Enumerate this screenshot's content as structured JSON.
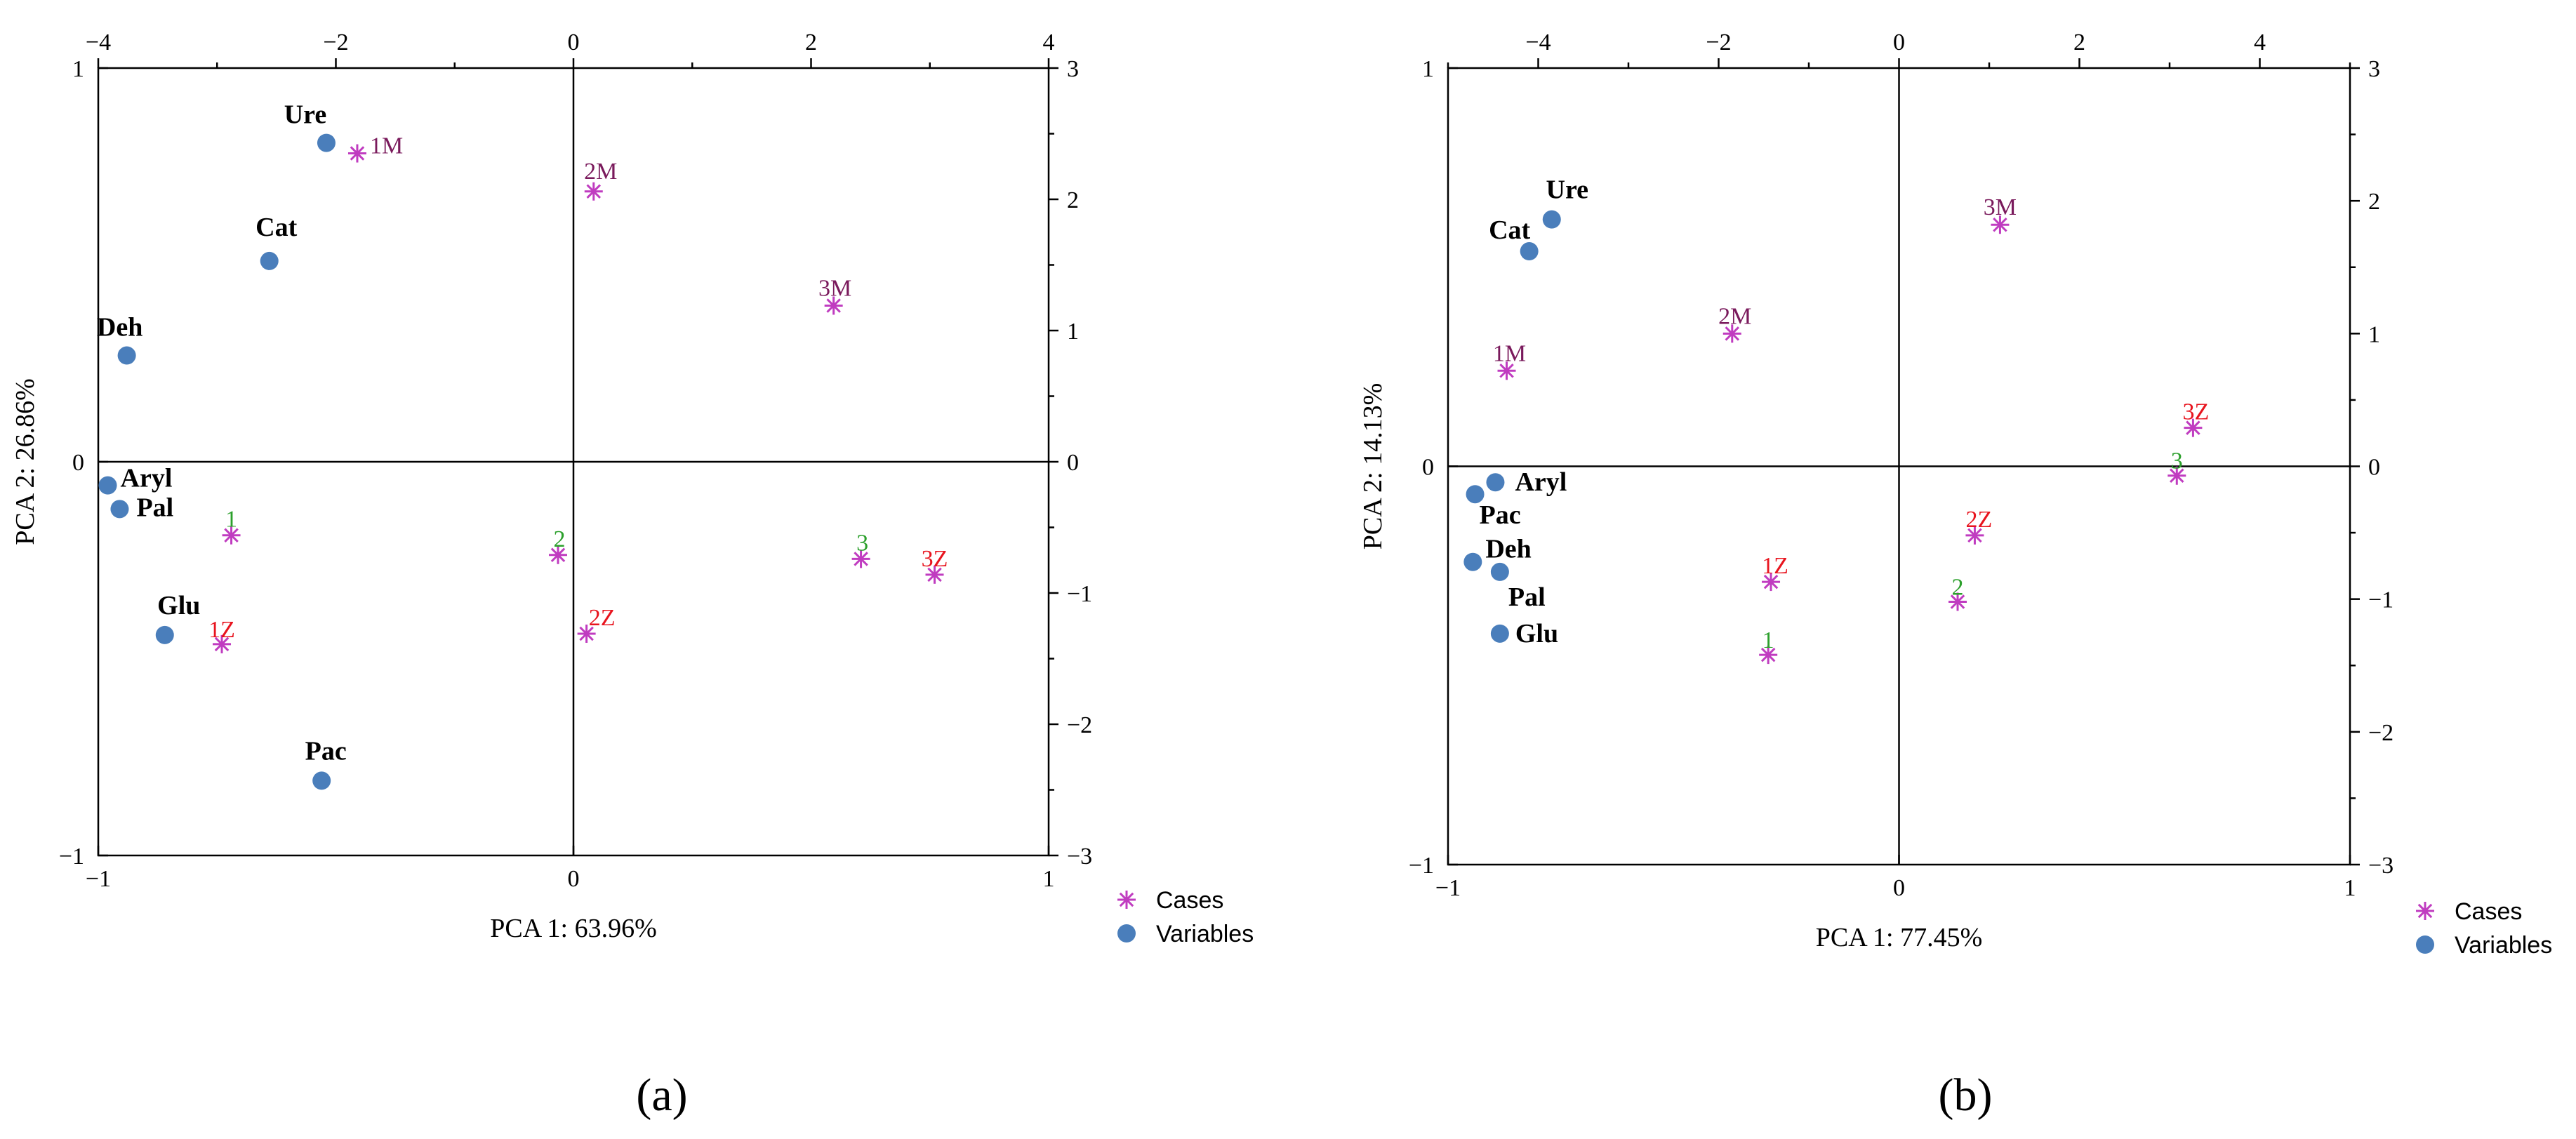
{
  "colors": {
    "variable_marker": "#4a7ebb",
    "case_marker": "#c03cc0",
    "maroon": "#7a1a5c",
    "green": "#2ca02c",
    "red": "#e8141e"
  },
  "chart_data": [
    {
      "type": "scatter",
      "panel_label": "(a)",
      "xlabel": "PCA 1: 63.96%",
      "ylabel": "PCA 2: 26.86%",
      "xlim": [
        -1,
        1
      ],
      "ylim": [
        -1,
        1
      ],
      "x2lim": [
        -4,
        4
      ],
      "y2lim": [
        -3,
        3
      ],
      "x_ticks": [
        -1,
        0,
        1
      ],
      "y_ticks": [
        -1,
        0,
        1
      ],
      "x2_ticks": [
        -4,
        -2,
        0,
        2,
        4
      ],
      "y2_ticks": [
        -3,
        -2,
        -1,
        0,
        1,
        2,
        3
      ],
      "legend": [
        "Cases",
        "Variables"
      ],
      "variables": [
        {
          "name": "Ure",
          "x": -0.52,
          "y": 0.81
        },
        {
          "name": "Cat",
          "x": -0.64,
          "y": 0.51
        },
        {
          "name": "Deh",
          "x": -0.94,
          "y": 0.27
        },
        {
          "name": "Aryl",
          "x": -0.98,
          "y": -0.06
        },
        {
          "name": "Pal",
          "x": -0.955,
          "y": -0.12
        },
        {
          "name": "Glu",
          "x": -0.86,
          "y": -0.44
        },
        {
          "name": "Pac",
          "x": -0.53,
          "y": -0.81
        }
      ],
      "cases": [
        {
          "name": "1M",
          "x": -1.82,
          "y": 2.35,
          "color": "maroon"
        },
        {
          "name": "2M",
          "x": 0.17,
          "y": 2.06,
          "color": "maroon"
        },
        {
          "name": "3M",
          "x": 2.19,
          "y": 1.19,
          "color": "maroon"
        },
        {
          "name": "1",
          "x": -2.88,
          "y": -0.56,
          "color": "green"
        },
        {
          "name": "2",
          "x": -0.13,
          "y": -0.71,
          "color": "green"
        },
        {
          "name": "3",
          "x": 2.42,
          "y": -0.74,
          "color": "green"
        },
        {
          "name": "1Z",
          "x": -2.96,
          "y": -1.39,
          "color": "red"
        },
        {
          "name": "2Z",
          "x": 0.11,
          "y": -1.31,
          "color": "red"
        },
        {
          "name": "3Z",
          "x": 3.04,
          "y": -0.86,
          "color": "red"
        }
      ]
    },
    {
      "type": "scatter",
      "panel_label": "(b)",
      "xlabel": "PCA 1: 77.45%",
      "ylabel": "PCA 2: 14.13%",
      "xlim": [
        -1,
        1
      ],
      "ylim": [
        -1,
        1
      ],
      "x2lim": [
        -5,
        5
      ],
      "y2lim": [
        -3,
        3
      ],
      "x_ticks": [
        -1,
        0,
        1
      ],
      "y_ticks": [
        -1,
        0,
        1
      ],
      "x2_ticks": [
        -4,
        -2,
        0,
        2,
        4
      ],
      "y2_ticks": [
        -3,
        -2,
        -1,
        0,
        1,
        2,
        3
      ],
      "legend": [
        "Cases",
        "Variables"
      ],
      "variables": [
        {
          "name": "Ure",
          "x": -0.77,
          "y": 0.62
        },
        {
          "name": "Cat",
          "x": -0.82,
          "y": 0.54
        },
        {
          "name": "Aryl",
          "x": -0.895,
          "y": -0.04
        },
        {
          "name": "Pac",
          "x": -0.94,
          "y": -0.07
        },
        {
          "name": "Deh",
          "x": -0.945,
          "y": -0.24
        },
        {
          "name": "Pal",
          "x": -0.885,
          "y": -0.265
        },
        {
          "name": "Glu",
          "x": -0.885,
          "y": -0.42
        }
      ],
      "cases": [
        {
          "name": "1M",
          "x": -4.35,
          "y": 0.72,
          "color": "maroon"
        },
        {
          "name": "2M",
          "x": -1.85,
          "y": 1.0,
          "color": "maroon"
        },
        {
          "name": "3M",
          "x": 1.12,
          "y": 1.82,
          "color": "maroon"
        },
        {
          "name": "1",
          "x": -1.45,
          "y": -1.42,
          "color": "green"
        },
        {
          "name": "2",
          "x": 0.65,
          "y": -1.02,
          "color": "green"
        },
        {
          "name": "3",
          "x": 3.08,
          "y": -0.07,
          "color": "green"
        },
        {
          "name": "1Z",
          "x": -1.42,
          "y": -0.87,
          "color": "red"
        },
        {
          "name": "2Z",
          "x": 0.84,
          "y": -0.52,
          "color": "red"
        },
        {
          "name": "3Z",
          "x": 3.26,
          "y": 0.29,
          "color": "red"
        }
      ]
    }
  ]
}
